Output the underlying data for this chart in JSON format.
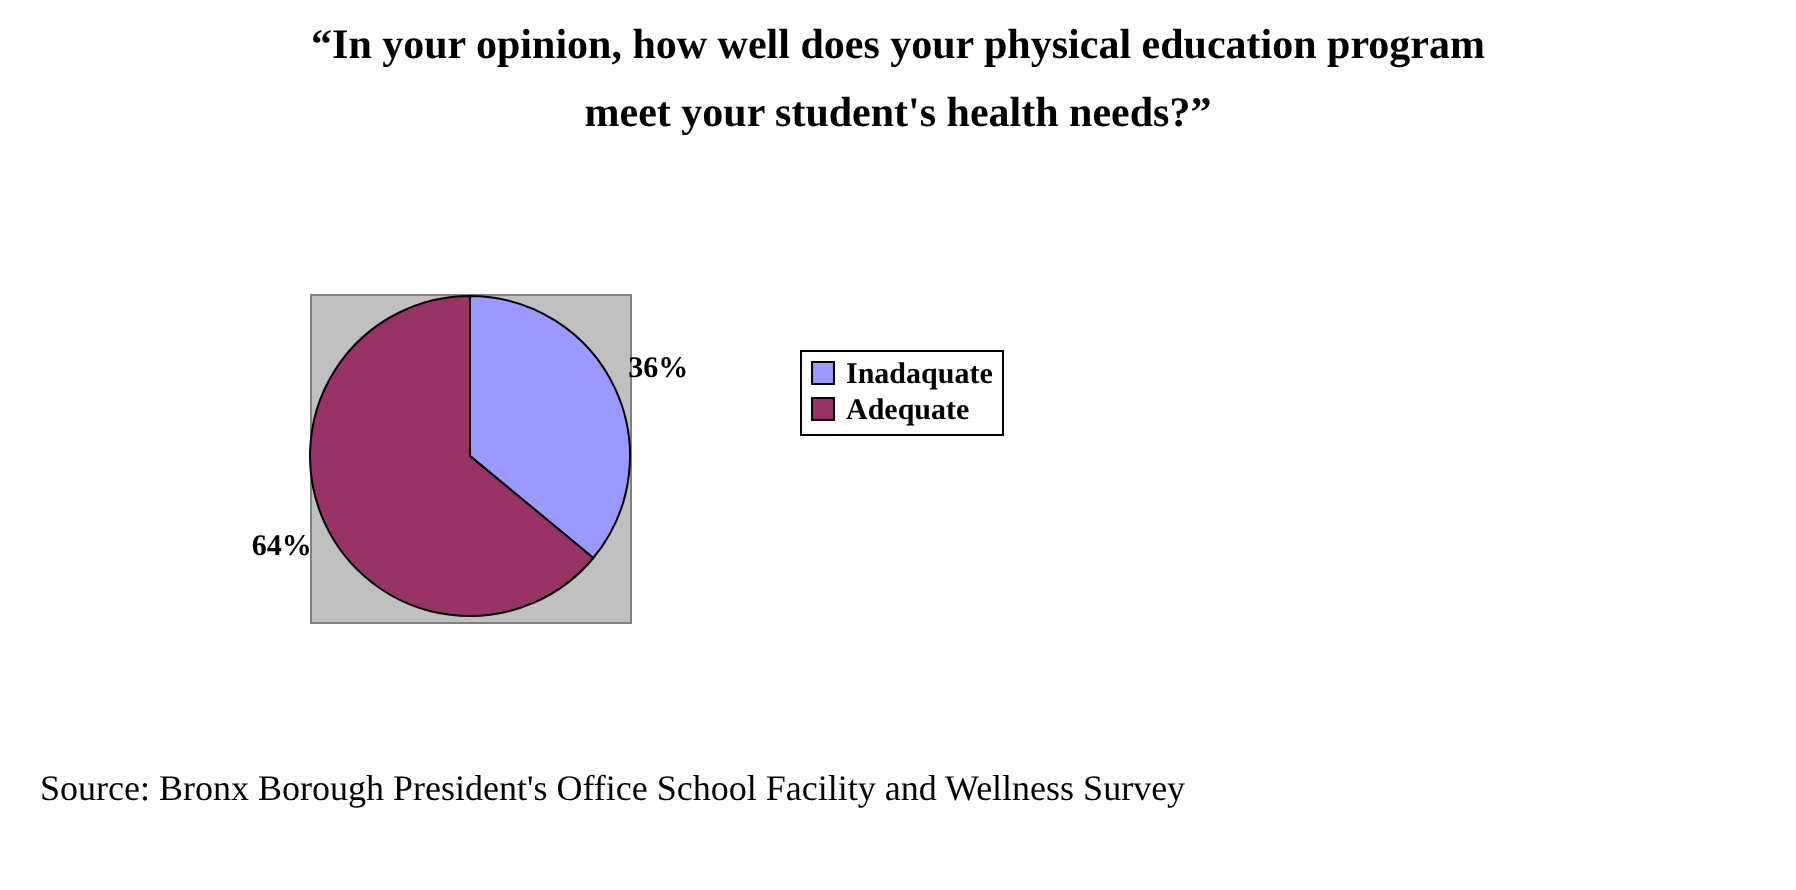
{
  "chart_data": {
    "type": "pie",
    "title": "“In your opinion, how well does your physical education program\nmeet your student's health needs?”",
    "categories": [
      "Inadaquate",
      "Adequate"
    ],
    "values": [
      36,
      64
    ],
    "colors": [
      "#9999ff",
      "#993366"
    ],
    "value_labels": [
      "36%",
      "64%"
    ],
    "legend": "right",
    "annotations": [
      "Source: Bronx Borough President's Office School Facility and Wellness Survey"
    ]
  }
}
